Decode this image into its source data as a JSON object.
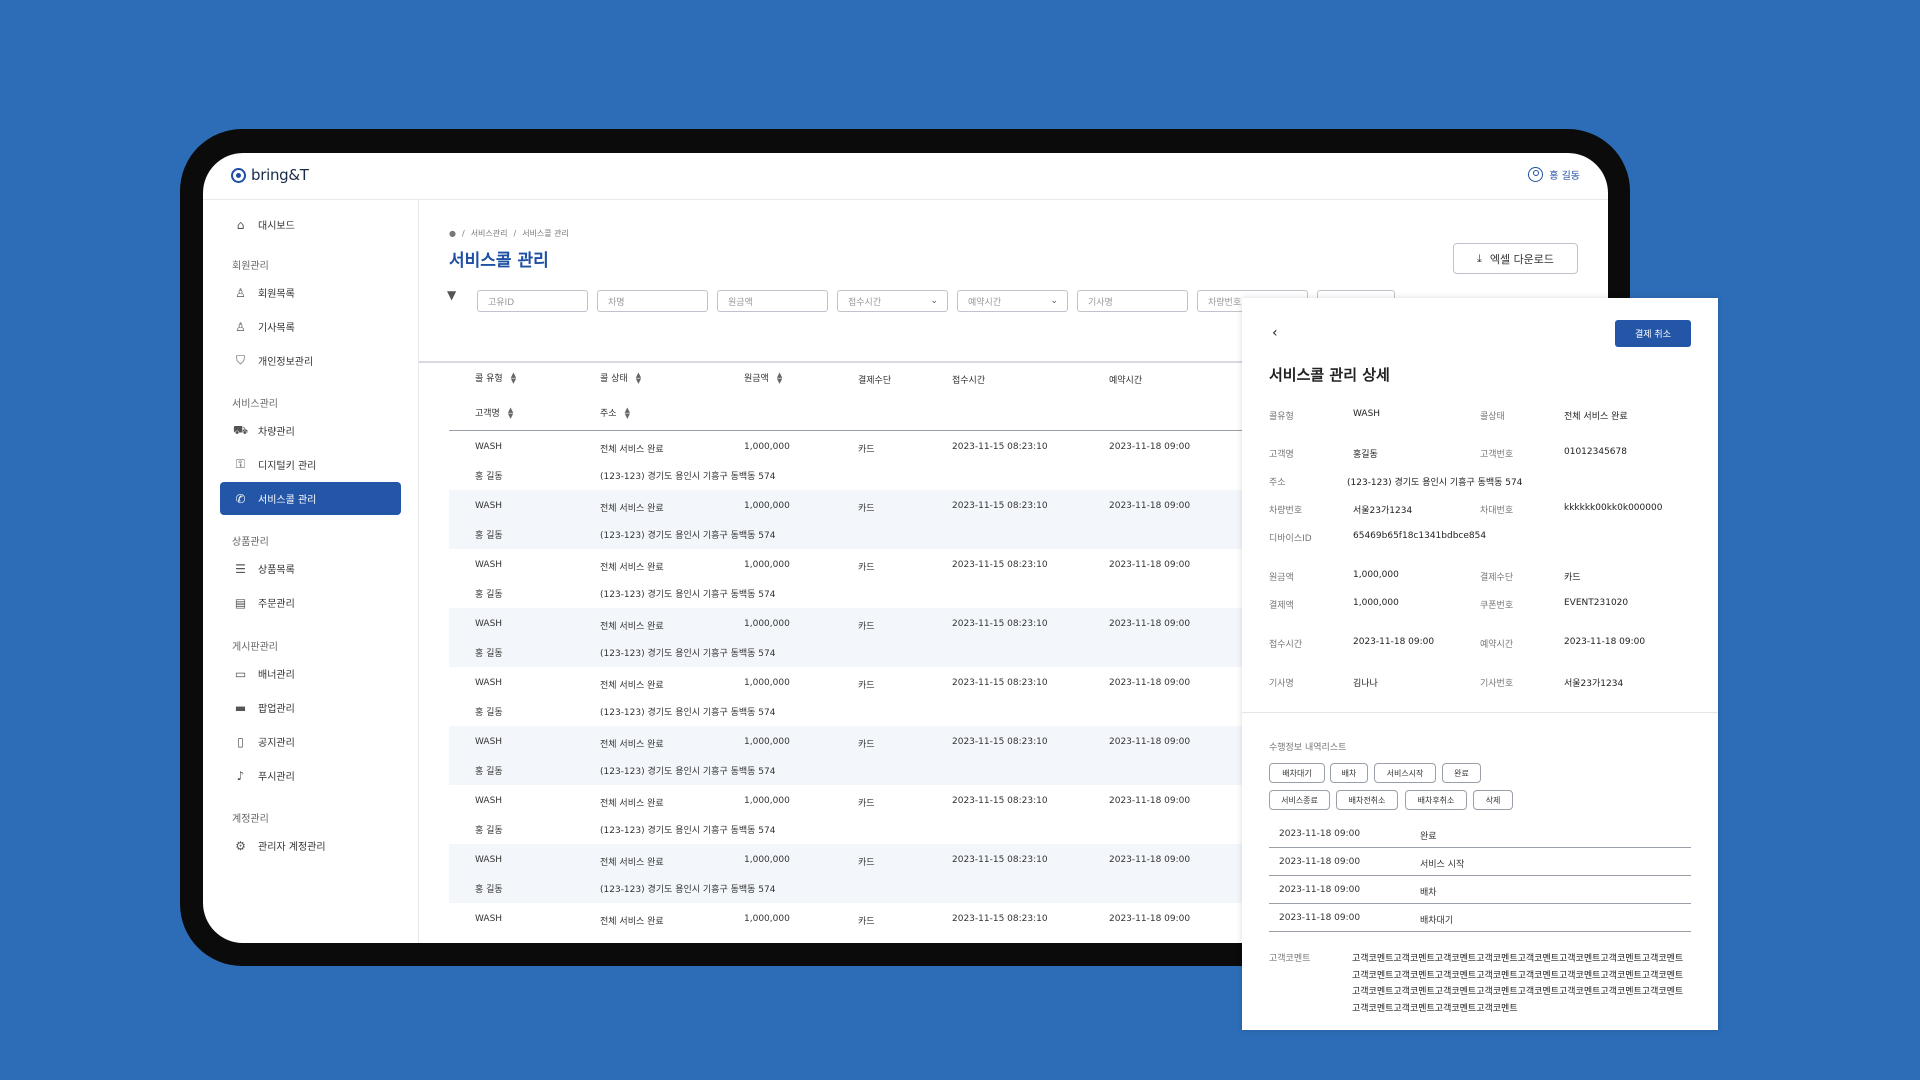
{
  "header": {
    "logo": "bring&T",
    "user_name": "홍 길동"
  },
  "sidebar": {
    "dashboard": "대시보드",
    "groups": {
      "member": "회원관리",
      "service": "서비스관리",
      "product": "상품관리",
      "board": "게시판관리",
      "account": "계정관리"
    },
    "items": {
      "member_list": "회원목록",
      "driver_list": "기사목록",
      "privacy": "개인정보관리",
      "vehicle": "차량관리",
      "digital_key": "디지털키 관리",
      "service_call": "서비스콜 관리",
      "product_list": "상품목록",
      "order": "주문관리",
      "banner": "배너관리",
      "popup": "팝업관리",
      "notice": "공지관리",
      "push": "푸시관리",
      "admin_account": "관리자 계정관리"
    }
  },
  "breadcrumb": [
    "서비스관리",
    "서비스콜 관리"
  ],
  "page_title": "서비스콜 관리",
  "excel_button": "엑셀 다운로드",
  "filters": {
    "unique_id": "고유ID",
    "car_name": "차명",
    "amount": "원금액",
    "received_time": "접수시간",
    "reservation_time": "예약시간",
    "driver_name": "기사명",
    "car_number": "차량번호"
  },
  "table": {
    "headers": {
      "call_type": "콜 유형",
      "call_status": "콜 상태",
      "amount": "원금액",
      "payment": "결제수단",
      "received": "접수시간",
      "reserved": "예약시간",
      "customer": "고객명",
      "address": "주소"
    },
    "rows": [
      {
        "type": "WASH",
        "status": "전체 서비스 완료",
        "amount": "1,000,000",
        "payment": "카드",
        "received": "2023-11-15 08:23:10",
        "reserved": "2023-11-18 09:00",
        "customer": "홍 길동",
        "address": "(123-123) 경기도 용인시 기흥구 동백동 574"
      },
      {
        "type": "WASH",
        "status": "전체 서비스 완료",
        "amount": "1,000,000",
        "payment": "카드",
        "received": "2023-11-15 08:23:10",
        "reserved": "2023-11-18 09:00",
        "customer": "홍 길동",
        "address": "(123-123) 경기도 용인시 기흥구 동백동 574"
      },
      {
        "type": "WASH",
        "status": "전체 서비스 완료",
        "amount": "1,000,000",
        "payment": "카드",
        "received": "2023-11-15 08:23:10",
        "reserved": "2023-11-18 09:00",
        "customer": "홍 길동",
        "address": "(123-123) 경기도 용인시 기흥구 동백동 574"
      },
      {
        "type": "WASH",
        "status": "전체 서비스 완료",
        "amount": "1,000,000",
        "payment": "카드",
        "received": "2023-11-15 08:23:10",
        "reserved": "2023-11-18 09:00",
        "customer": "홍 길동",
        "address": "(123-123) 경기도 용인시 기흥구 동백동 574"
      },
      {
        "type": "WASH",
        "status": "전체 서비스 완료",
        "amount": "1,000,000",
        "payment": "카드",
        "received": "2023-11-15 08:23:10",
        "reserved": "2023-11-18 09:00",
        "customer": "홍 길동",
        "address": "(123-123) 경기도 용인시 기흥구 동백동 574"
      },
      {
        "type": "WASH",
        "status": "전체 서비스 완료",
        "amount": "1,000,000",
        "payment": "카드",
        "received": "2023-11-15 08:23:10",
        "reserved": "2023-11-18 09:00",
        "customer": "홍 길동",
        "address": "(123-123) 경기도 용인시 기흥구 동백동 574"
      },
      {
        "type": "WASH",
        "status": "전체 서비스 완료",
        "amount": "1,000,000",
        "payment": "카드",
        "received": "2023-11-15 08:23:10",
        "reserved": "2023-11-18 09:00",
        "customer": "홍 길동",
        "address": "(123-123) 경기도 용인시 기흥구 동백동 574"
      },
      {
        "type": "WASH",
        "status": "전체 서비스 완료",
        "amount": "1,000,000",
        "payment": "카드",
        "received": "2023-11-15 08:23:10",
        "reserved": "2023-11-18 09:00",
        "customer": "홍 길동",
        "address": "(123-123) 경기도 용인시 기흥구 동백동 574"
      },
      {
        "type": "WASH",
        "status": "전체 서비스 완료",
        "amount": "1,000,000",
        "payment": "카드",
        "received": "2023-11-15 08:23:10",
        "reserved": "2023-11-18 09:00",
        "customer": "",
        "address": ""
      }
    ]
  },
  "detail": {
    "cancel_button": "결제 취소",
    "title": "서비스콜 관리 상세",
    "labels": {
      "call_type": "콜유형",
      "call_status": "콜상태",
      "customer": "고객명",
      "customer_no": "고객번호",
      "address": "주소",
      "car_number": "차량번호",
      "chassis_no": "차대번호",
      "device_id": "디바이스ID",
      "amount": "원금액",
      "payment": "결제수단",
      "paid": "결제액",
      "coupon": "쿠폰번호",
      "received": "접수시간",
      "reserved": "예약시간",
      "driver": "기사명",
      "driver_no": "기사번호"
    },
    "values": {
      "call_type": "WASH",
      "call_status": "전체 서비스 완료",
      "customer": "홍길동",
      "customer_no": "01012345678",
      "address": "(123-123) 경기도 용인시 기흥구 동백동 574",
      "car_number": "서울23가1234",
      "chassis_no": "kkkkkk00kk0k000000",
      "device_id": "65469b65f18c1341bdbce854",
      "amount": "1,000,000",
      "payment": "카드",
      "paid": "1,000,000",
      "coupon": "EVENT231020",
      "received": "2023-11-18 09:00",
      "reserved": "2023-11-18 09:00",
      "driver": "김나나",
      "driver_no": "서울23가1234"
    },
    "history_title": "수행정보 내역리스트",
    "chips": [
      "배차대기",
      "배차",
      "서비스시작",
      "완료",
      "서비스종료",
      "배차전취소",
      "배차후취소",
      "삭제"
    ],
    "history": [
      {
        "time": "2023-11-18 09:00",
        "event": "완료"
      },
      {
        "time": "2023-11-18 09:00",
        "event": "서비스 시작"
      },
      {
        "time": "2023-11-18 09:00",
        "event": "배차"
      },
      {
        "time": "2023-11-18 09:00",
        "event": "배차대기"
      }
    ],
    "comment_label": "고객코멘트",
    "comment": "고객코멘트고객코멘트고객코멘트고객코멘트고객코멘트고객코멘트고객코멘트고객코멘트고객코멘트고객코멘트고객코멘트고객코멘트고객코멘트고객코멘트고객코멘트고객코멘트고객코멘트고객코멘트고객코멘트고객코멘트고객코멘트고객코멘트고객코멘트고객코멘트고객코멘트고객코멘트고객코멘트고객코멘트"
  },
  "colors": {
    "background": "#2d6db7",
    "accent": "#2456a8",
    "title": "#1f4fa4"
  }
}
